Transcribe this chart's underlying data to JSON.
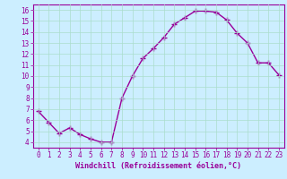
{
  "x": [
    0,
    1,
    2,
    3,
    4,
    5,
    6,
    7,
    8,
    9,
    10,
    11,
    12,
    13,
    14,
    15,
    16,
    17,
    18,
    19,
    20,
    21,
    22,
    23
  ],
  "y": [
    6.8,
    5.8,
    4.8,
    5.3,
    4.7,
    4.3,
    4.0,
    4.0,
    8.0,
    10.0,
    11.6,
    12.5,
    13.5,
    14.7,
    15.3,
    15.9,
    15.9,
    15.8,
    15.1,
    13.9,
    13.0,
    11.2,
    11.2,
    10.1
  ],
  "line_color": "#990099",
  "marker": "+",
  "markersize": 4,
  "linewidth": 1.0,
  "markeredgewidth": 1.0,
  "xlabel": "Windchill (Refroidissement éolien,°C)",
  "xlim": [
    -0.5,
    23.5
  ],
  "ylim": [
    3.5,
    16.5
  ],
  "yticks": [
    4,
    5,
    6,
    7,
    8,
    9,
    10,
    11,
    12,
    13,
    14,
    15,
    16
  ],
  "xticks": [
    0,
    1,
    2,
    3,
    4,
    5,
    6,
    7,
    8,
    9,
    10,
    11,
    12,
    13,
    14,
    15,
    16,
    17,
    18,
    19,
    20,
    21,
    22,
    23
  ],
  "bg_color": "#cceeff",
  "grid_color": "#aaddcc",
  "tick_color": "#990099",
  "label_color": "#990099",
  "font_family": "monospace",
  "tick_fontsize": 5.5,
  "xlabel_fontsize": 6.0
}
